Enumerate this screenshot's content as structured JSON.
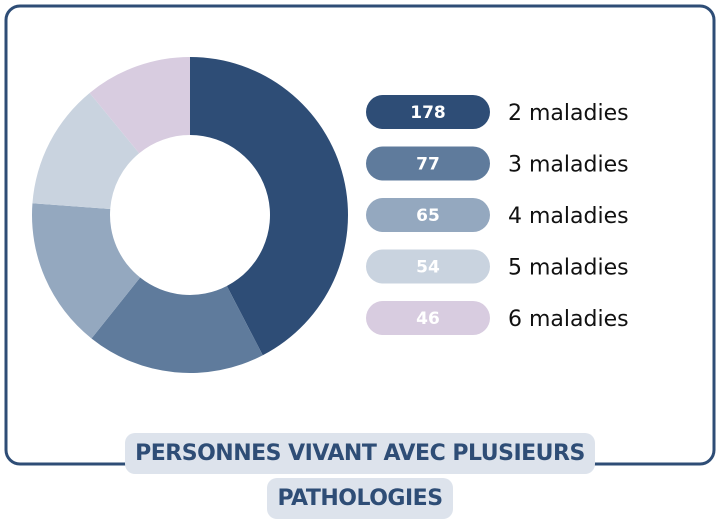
{
  "chart_data": {
    "type": "pie",
    "donut": true,
    "title": "PERSONNES VIVANT AVEC PLUSIEURS PATHOLOGIES",
    "categories": [
      "2 maladies",
      "3 maladies",
      "4 maladies",
      "5 maladies",
      "6 maladies"
    ],
    "values": [
      178,
      77,
      65,
      54,
      46
    ],
    "colors": [
      "#2e4d76",
      "#5f7b9c",
      "#94a8bf",
      "#c9d3df",
      "#d8cce0"
    ]
  }
}
